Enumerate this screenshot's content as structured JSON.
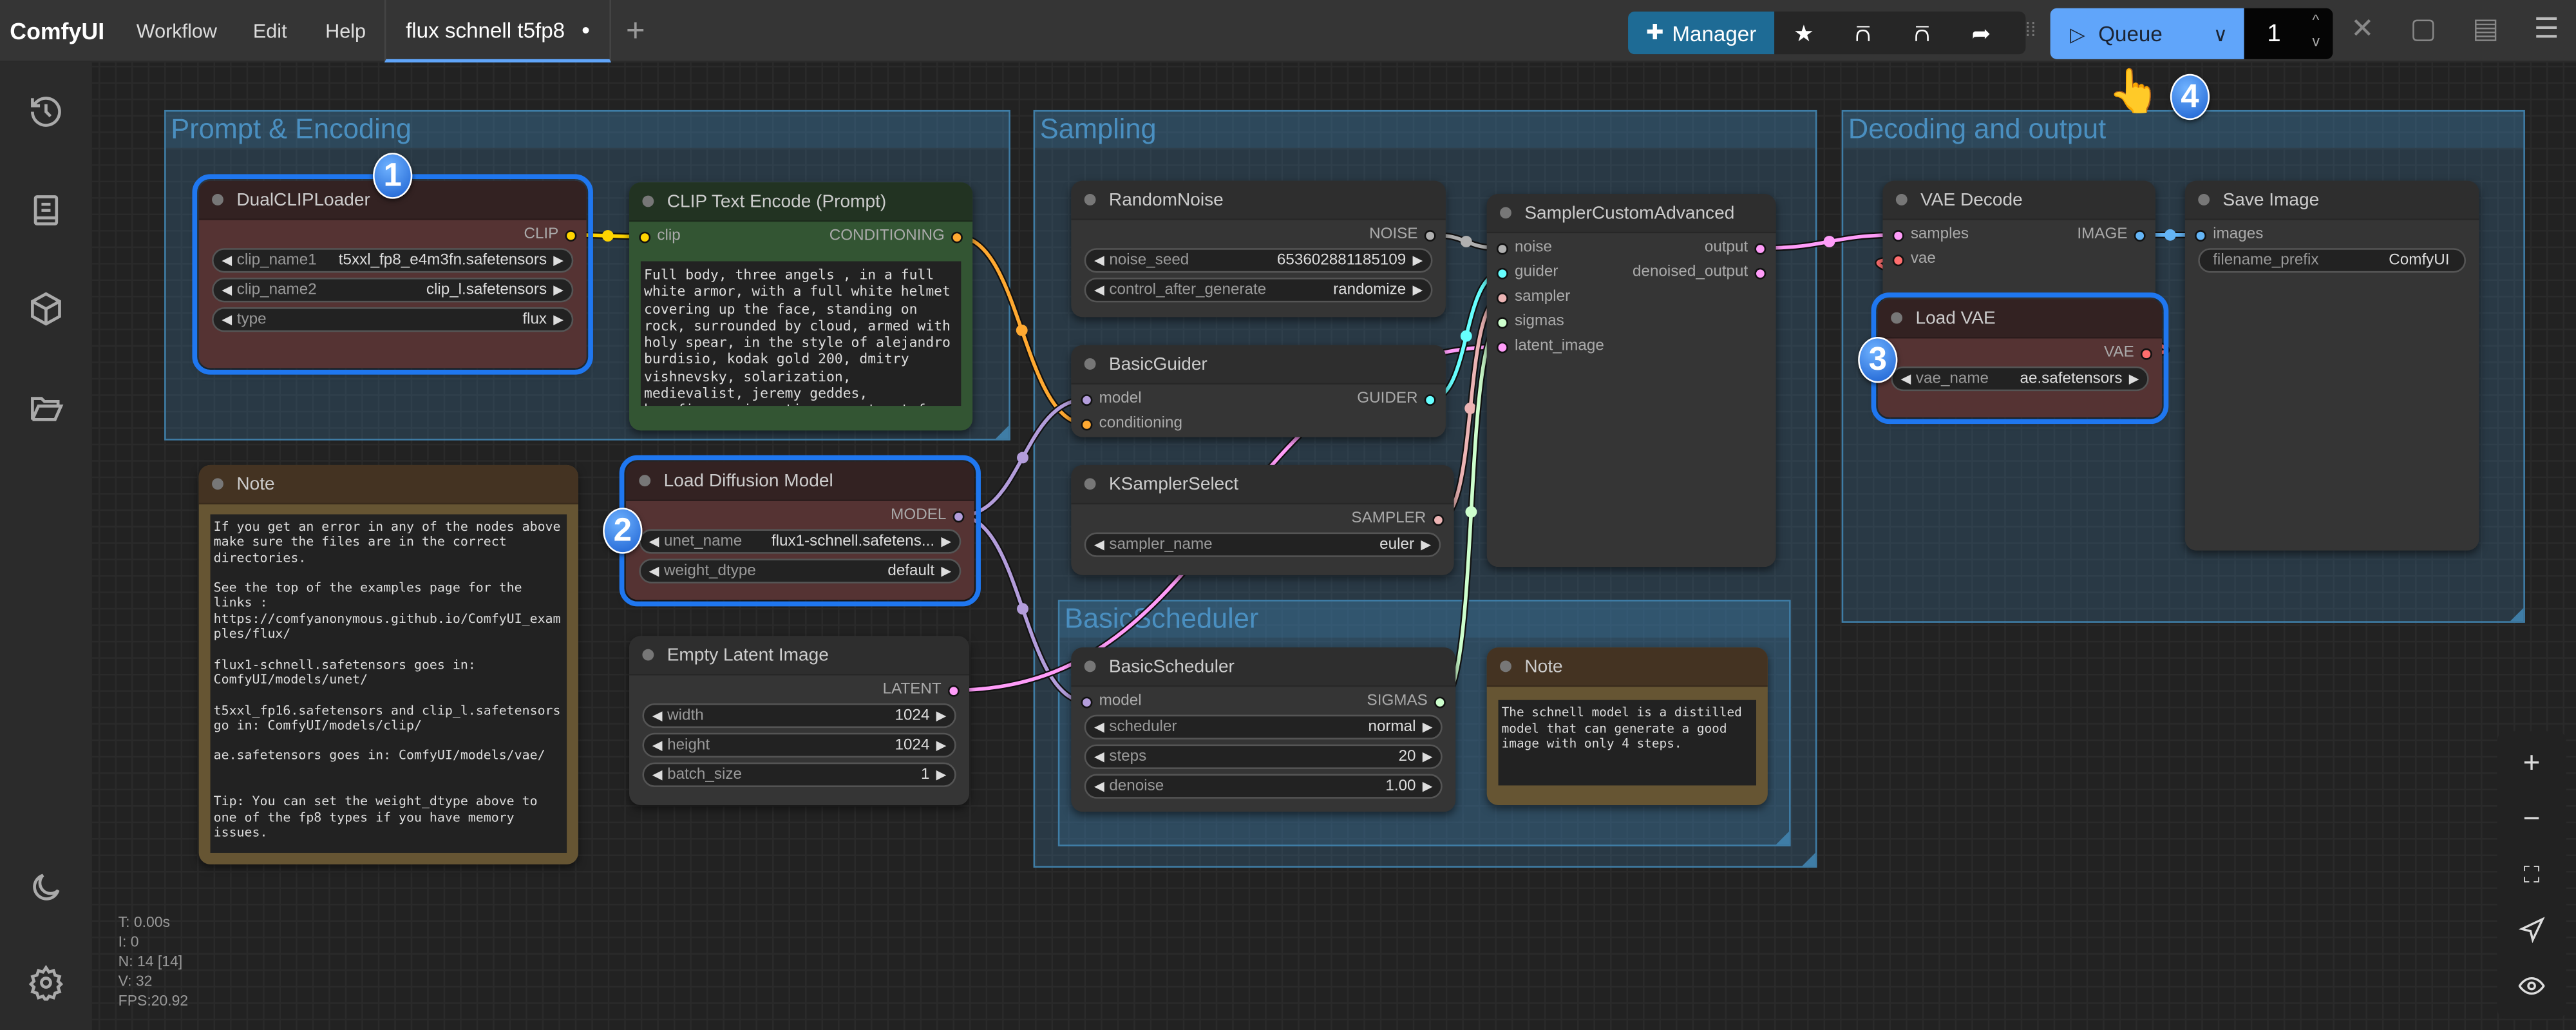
{
  "topbar": {
    "brand": "ComfyUI",
    "menu": [
      "Workflow",
      "Edit",
      "Help"
    ],
    "tab": {
      "label": "flux schnell t5fp8",
      "modified": "●"
    },
    "new_tab": "+",
    "manager_label": "Manager",
    "queue_label": "Queue",
    "queue_count": "1"
  },
  "groups": [
    {
      "title": "Prompt & Encoding"
    },
    {
      "title": "Sampling"
    },
    {
      "title": "Decoding and output"
    },
    {
      "title": "BasicScheduler"
    }
  ],
  "nodes": [
    {
      "id": "dualclip",
      "title": "DualCLIPLoader",
      "theme": "red",
      "selected": true,
      "inputs": [],
      "outputs": [
        {
          "label": "CLIP",
          "color": "#FFD500"
        }
      ],
      "widgets": [
        {
          "name": "clip_name1",
          "value": "t5xxl_fp8_e4m3fn.safetensors"
        },
        {
          "name": "clip_name2",
          "value": "clip_l.safetensors"
        },
        {
          "name": "type",
          "value": "flux"
        }
      ]
    },
    {
      "id": "cliptext",
      "title": "CLIP Text Encode (Prompt)",
      "theme": "green",
      "inputs": [
        {
          "label": "clip",
          "color": "#FFD500"
        }
      ],
      "outputs": [
        {
          "label": "CONDITIONING",
          "color": "#FFA931"
        }
      ],
      "widgets": [],
      "text": "Full body, three angels , in a full white armor, with a full white helmet covering up the face, standing on rock, surrounded by cloud, armed with holy spear, in the style of alejandro burdisio, kodak gold 200, dmitry vishnevsky, solarization, medievalist, jeremy geddes, hurufiyya, cinematic concept art from the new nobuhiko obayashi film"
    },
    {
      "id": "note1",
      "title": "Note",
      "theme": "brown",
      "inputs": [],
      "outputs": [],
      "widgets": [],
      "text": "If you get an error in any of the nodes above make sure the files are in the correct directories.\n\nSee the top of the examples page for the links :\nhttps://comfyanonymous.github.io/ComfyUI_examples/flux/\n\nflux1-schnell.safetensors goes in: ComfyUI/models/unet/\n\nt5xxl_fp16.safetensors and clip_l.safetensors go in: ComfyUI/models/clip/\n\nae.safetensors goes in: ComfyUI/models/vae/\n\n\nTip: You can set the weight_dtype above to one of the fp8 types if you have memory issues."
    },
    {
      "id": "loaddiff",
      "title": "Load Diffusion Model",
      "theme": "red",
      "selected": true,
      "inputs": [],
      "outputs": [
        {
          "label": "MODEL",
          "color": "#B39DDB"
        }
      ],
      "widgets": [
        {
          "name": "unet_name",
          "value": "flux1-schnell.safetens..."
        },
        {
          "name": "weight_dtype",
          "value": "default"
        }
      ]
    },
    {
      "id": "emptylatent",
      "title": "Empty Latent Image",
      "theme": "default",
      "inputs": [],
      "outputs": [
        {
          "label": "LATENT",
          "color": "#FF9CF9"
        }
      ],
      "widgets": [
        {
          "name": "width",
          "value": "1024"
        },
        {
          "name": "height",
          "value": "1024"
        },
        {
          "name": "batch_size",
          "value": "1"
        }
      ]
    },
    {
      "id": "randomnoise",
      "title": "RandomNoise",
      "theme": "default",
      "inputs": [],
      "outputs": [
        {
          "label": "NOISE",
          "color": "#B0B0B0"
        }
      ],
      "widgets": [
        {
          "name": "noise_seed",
          "value": "653602881185109"
        },
        {
          "name": "control_after_generate",
          "value": "randomize"
        }
      ]
    },
    {
      "id": "basicguider",
      "title": "BasicGuider",
      "theme": "default",
      "inputs": [
        {
          "label": "model",
          "color": "#B39DDB"
        },
        {
          "label": "conditioning",
          "color": "#FFA931"
        }
      ],
      "outputs": [
        {
          "label": "GUIDER",
          "color": "#66FFFF"
        }
      ],
      "widgets": []
    },
    {
      "id": "ksamplerselect",
      "title": "KSamplerSelect",
      "theme": "default",
      "inputs": [],
      "outputs": [
        {
          "label": "SAMPLER",
          "color": "#ECB4B4"
        }
      ],
      "widgets": [
        {
          "name": "sampler_name",
          "value": "euler"
        }
      ]
    },
    {
      "id": "samplercustom",
      "title": "SamplerCustomAdvanced",
      "theme": "default",
      "inputs": [
        {
          "label": "noise",
          "color": "#B0B0B0"
        },
        {
          "label": "guider",
          "color": "#66FFFF"
        },
        {
          "label": "sampler",
          "color": "#ECB4B4"
        },
        {
          "label": "sigmas",
          "color": "#CDFFCD"
        },
        {
          "label": "latent_image",
          "color": "#FF9CF9"
        }
      ],
      "outputs": [
        {
          "label": "output",
          "color": "#FF9CF9"
        },
        {
          "label": "denoised_output",
          "color": "#FF9CF9"
        }
      ],
      "widgets": []
    },
    {
      "id": "basicscheduler",
      "title": "BasicScheduler",
      "theme": "default",
      "inputs": [
        {
          "label": "model",
          "color": "#B39DDB"
        }
      ],
      "outputs": [
        {
          "label": "SIGMAS",
          "color": "#CDFFCD"
        }
      ],
      "widgets": [
        {
          "name": "scheduler",
          "value": "normal"
        },
        {
          "name": "steps",
          "value": "20"
        },
        {
          "name": "denoise",
          "value": "1.00"
        }
      ]
    },
    {
      "id": "note2",
      "title": "Note",
      "theme": "brown",
      "inputs": [],
      "outputs": [],
      "widgets": [],
      "text": "The schnell model is a distilled model that can generate a good image with only 4 steps."
    },
    {
      "id": "vaedecode",
      "title": "VAE Decode",
      "theme": "default",
      "inputs": [
        {
          "label": "samples",
          "color": "#FF9CF9"
        },
        {
          "label": "vae",
          "color": "#FF6E6E"
        }
      ],
      "outputs": [
        {
          "label": "IMAGE",
          "color": "#64B5F6"
        }
      ],
      "widgets": []
    },
    {
      "id": "saveimage",
      "title": "Save Image",
      "theme": "default",
      "inputs": [
        {
          "label": "images",
          "color": "#64B5F6"
        }
      ],
      "outputs": [],
      "widgets": [
        {
          "name": "filename_prefix",
          "value": "ComfyUI",
          "noarrows": true
        }
      ]
    },
    {
      "id": "loadvae",
      "title": "Load VAE",
      "theme": "red",
      "selected": true,
      "inputs": [],
      "outputs": [
        {
          "label": "VAE",
          "color": "#FF6E6E"
        }
      ],
      "widgets": [
        {
          "name": "vae_name",
          "value": "ae.safetensors"
        }
      ]
    }
  ],
  "badges": [
    "1",
    "2",
    "3",
    "4"
  ],
  "stats": [
    "T: 0.00s",
    "I: 0",
    "N: 14 [14]",
    "V: 32",
    "FPS:20.92"
  ],
  "colors": {
    "accent": "#60A5FA",
    "manager": "#1E6B95",
    "selection": "#1F77F0",
    "group": "#3F7DA6"
  }
}
